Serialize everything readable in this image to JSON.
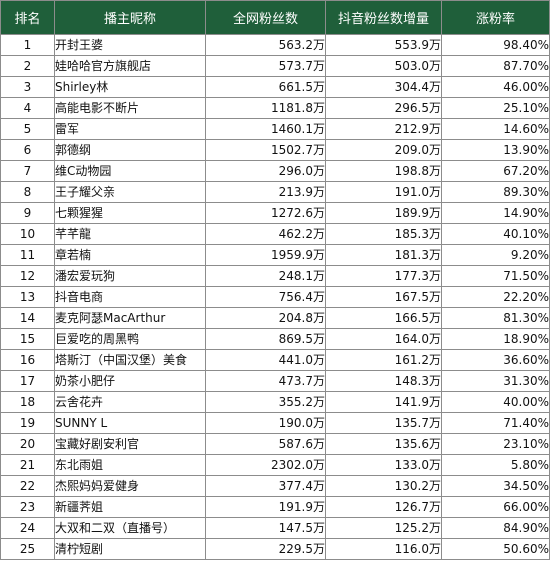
{
  "table": {
    "headers": [
      "排名",
      "播主昵称",
      "全网粉丝数",
      "抖音粉丝数增量",
      "涨粉率"
    ],
    "rows": [
      [
        "1",
        "开封王婆",
        "563.2万",
        "553.9万",
        "98.40%"
      ],
      [
        "2",
        "娃哈哈官方旗舰店",
        "573.7万",
        "503.0万",
        "87.70%"
      ],
      [
        "3",
        "Shirley林",
        "661.5万",
        "304.4万",
        "46.00%"
      ],
      [
        "4",
        "高能电影不断片",
        "1181.8万",
        "296.5万",
        "25.10%"
      ],
      [
        "5",
        "雷军",
        "1460.1万",
        "212.9万",
        "14.60%"
      ],
      [
        "6",
        "郭德纲",
        "1502.7万",
        "209.0万",
        "13.90%"
      ],
      [
        "7",
        "维C动物园",
        "296.0万",
        "198.8万",
        "67.20%"
      ],
      [
        "8",
        "王子耀父亲",
        "213.9万",
        "191.0万",
        "89.30%"
      ],
      [
        "9",
        "七颗猩猩",
        "1272.6万",
        "189.9万",
        "14.90%"
      ],
      [
        "10",
        "芊芊龍",
        "462.2万",
        "185.3万",
        "40.10%"
      ],
      [
        "11",
        "章若楠",
        "1959.9万",
        "181.3万",
        "9.20%"
      ],
      [
        "12",
        "潘宏爱玩狗",
        "248.1万",
        "177.3万",
        "71.50%"
      ],
      [
        "13",
        "抖音电商",
        "756.4万",
        "167.5万",
        "22.20%"
      ],
      [
        "14",
        "麦克阿瑟MacArthur",
        "204.8万",
        "166.5万",
        "81.30%"
      ],
      [
        "15",
        "巨爱吃的周黑鸭",
        "869.5万",
        "164.0万",
        "18.90%"
      ],
      [
        "16",
        "塔斯汀（中国汉堡）美食",
        "441.0万",
        "161.2万",
        "36.60%"
      ],
      [
        "17",
        "奶茶小肥仔",
        "473.7万",
        "148.3万",
        "31.30%"
      ],
      [
        "18",
        "云舍花卉",
        "355.2万",
        "141.9万",
        "40.00%"
      ],
      [
        "19",
        "SUNNY L",
        "190.0万",
        "135.7万",
        "71.40%"
      ],
      [
        "20",
        "宝藏好剧安利官",
        "587.6万",
        "135.6万",
        "23.10%"
      ],
      [
        "21",
        "东北雨姐",
        "2302.0万",
        "133.0万",
        "5.80%"
      ],
      [
        "22",
        "杰熙妈妈爱健身",
        "377.4万",
        "130.2万",
        "34.50%"
      ],
      [
        "23",
        "新疆荠姐",
        "191.9万",
        "126.7万",
        "66.00%"
      ],
      [
        "24",
        "大双和二双（直播号）",
        "147.5万",
        "125.2万",
        "84.90%"
      ],
      [
        "25",
        "清柠短剧",
        "229.5万",
        "116.0万",
        "50.60%"
      ]
    ]
  },
  "colors": {
    "header_background": "#1f5f3a",
    "header_text": "#ffffff",
    "grid_line": "#8c8c8c"
  }
}
